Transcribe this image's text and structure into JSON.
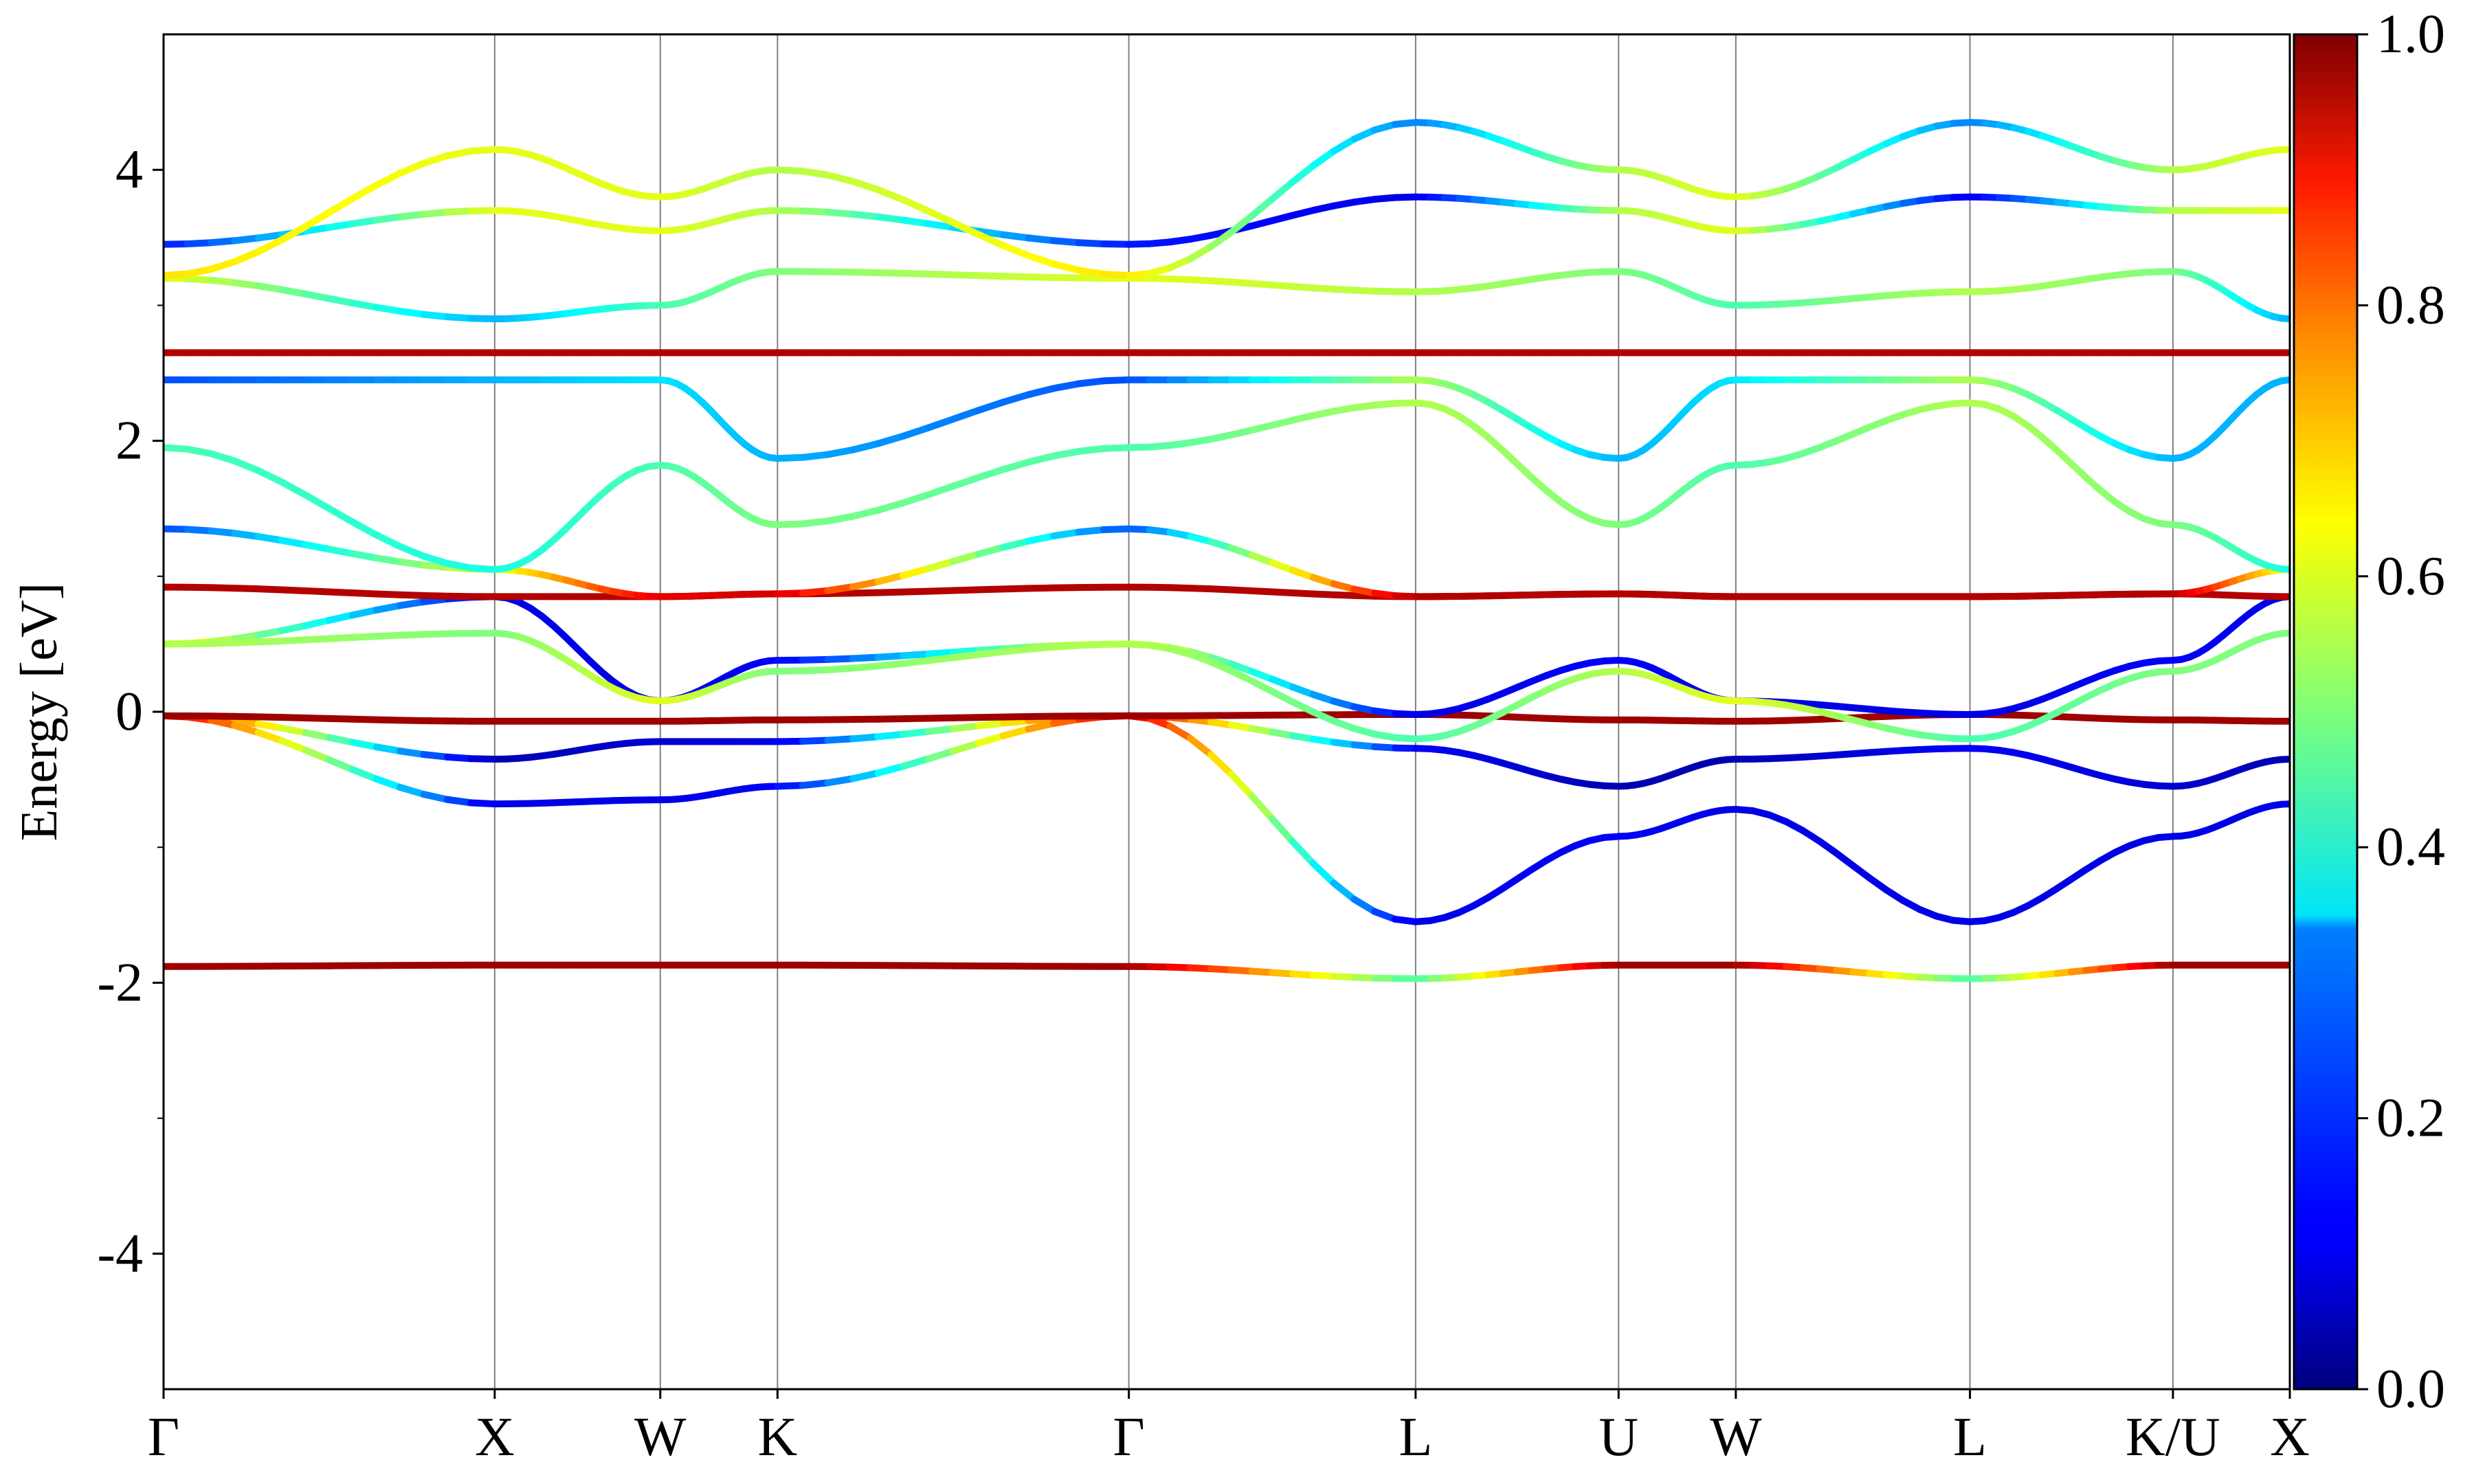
{
  "chart_data": {
    "type": "line",
    "subtype": "band-structure",
    "title": "",
    "xlabel": "",
    "ylabel": "Energy [eV]",
    "ylim": [
      -5,
      5
    ],
    "y_ticks": [
      {
        "value": 4,
        "label": "4"
      },
      {
        "value": 2,
        "label": "2"
      },
      {
        "value": 0,
        "label": "0"
      },
      {
        "value": -2,
        "label": "-2"
      },
      {
        "value": -4,
        "label": "-4"
      }
    ],
    "k_path": [
      {
        "label": "Γ",
        "k": 0.0
      },
      {
        "label": "X",
        "k": 1.0
      },
      {
        "label": "W",
        "k": 1.5
      },
      {
        "label": "K",
        "k": 1.854
      },
      {
        "label": "Γ",
        "k": 2.915
      },
      {
        "label": "L",
        "k": 3.781
      },
      {
        "label": "U",
        "k": 4.394
      },
      {
        "label": "W",
        "k": 4.748
      },
      {
        "label": "L",
        "k": 5.455
      },
      {
        "label": "K/U",
        "k": 6.068
      },
      {
        "label": "X",
        "k": 6.421
      }
    ],
    "colorbar": {
      "range": [
        0.0,
        1.0
      ],
      "ticks": [
        "0.0",
        "0.2",
        "0.4",
        "0.6",
        "0.8",
        "1.0"
      ],
      "colormap": "jet"
    },
    "grid": "vertical lines at high-symmetry points",
    "series": [
      {
        "e": [
          -1.88,
          -1.87,
          -1.87,
          -1.87,
          -1.88,
          -1.97,
          -1.87,
          -1.87,
          -1.97,
          -1.87,
          -1.87
        ],
        "w": [
          0.97,
          0.97,
          0.97,
          0.97,
          0.97,
          0.45,
          0.97,
          0.97,
          0.45,
          0.97,
          0.97
        ]
      },
      {
        "e": [
          -0.03,
          -0.35,
          -0.22,
          -0.22,
          -0.03,
          -0.27,
          -0.55,
          -0.35,
          -0.27,
          -0.55,
          -0.35
        ],
        "w": [
          0.92,
          0.05,
          0.08,
          0.1,
          0.92,
          0.12,
          0.05,
          0.05,
          0.12,
          0.08,
          0.05
        ]
      },
      {
        "e": [
          -0.03,
          -0.68,
          -0.65,
          -0.55,
          -0.03,
          -1.55,
          -0.92,
          -0.72,
          -1.55,
          -0.92,
          -0.68
        ],
        "w": [
          0.92,
          0.1,
          0.1,
          0.12,
          0.92,
          0.1,
          0.12,
          0.1,
          0.1,
          0.1,
          0.1
        ]
      },
      {
        "e": [
          -0.03,
          -0.07,
          -0.07,
          -0.06,
          -0.03,
          -0.02,
          -0.06,
          -0.07,
          -0.02,
          -0.06,
          -0.07
        ],
        "w": [
          0.97,
          0.97,
          0.97,
          0.97,
          0.97,
          0.97,
          0.97,
          0.97,
          0.97,
          0.97,
          0.97
        ]
      },
      {
        "e": [
          0.5,
          0.85,
          0.08,
          0.38,
          0.5,
          -0.02,
          0.38,
          0.08,
          -0.02,
          0.38,
          0.85
        ],
        "w": [
          0.65,
          0.1,
          0.1,
          0.12,
          0.65,
          0.1,
          0.12,
          0.1,
          0.1,
          0.12,
          0.1
        ]
      },
      {
        "e": [
          0.5,
          0.58,
          0.08,
          0.3,
          0.5,
          -0.2,
          0.3,
          0.08,
          -0.2,
          0.3,
          0.58
        ],
        "w": [
          0.55,
          0.5,
          0.6,
          0.5,
          0.55,
          0.45,
          0.55,
          0.6,
          0.45,
          0.5,
          0.5
        ]
      },
      {
        "e": [
          0.92,
          0.85,
          0.85,
          0.87,
          0.92,
          0.85,
          0.87,
          0.85,
          0.85,
          0.87,
          0.85
        ],
        "w": [
          0.95,
          0.95,
          0.95,
          0.95,
          0.95,
          0.95,
          0.95,
          0.95,
          0.95,
          0.95,
          0.95
        ]
      },
      {
        "e": [
          1.35,
          1.05,
          0.85,
          0.87,
          1.35,
          0.85,
          0.87,
          0.85,
          0.85,
          0.87,
          1.05
        ],
        "w": [
          0.2,
          0.6,
          0.9,
          0.92,
          0.2,
          0.95,
          0.95,
          0.95,
          0.95,
          0.95,
          0.6
        ]
      },
      {
        "e": [
          1.95,
          1.05,
          1.82,
          1.38,
          1.95,
          2.28,
          1.38,
          1.82,
          2.28,
          1.38,
          1.05
        ],
        "w": [
          0.45,
          0.4,
          0.45,
          0.5,
          0.45,
          0.55,
          0.5,
          0.45,
          0.55,
          0.5,
          0.4
        ]
      },
      {
        "e": [
          2.45,
          2.45,
          2.45,
          1.87,
          2.45,
          2.45,
          1.87,
          2.45,
          2.45,
          1.87,
          2.45
        ],
        "w": [
          0.2,
          0.3,
          0.35,
          0.3,
          0.2,
          0.55,
          0.3,
          0.35,
          0.55,
          0.3,
          0.3
        ]
      },
      {
        "e": [
          2.65,
          2.65,
          2.65,
          2.65,
          2.65,
          2.65,
          2.65,
          2.65,
          2.65,
          2.65,
          2.65
        ],
        "w": [
          0.95,
          0.95,
          0.95,
          0.95,
          0.95,
          0.95,
          0.95,
          0.95,
          0.95,
          0.95,
          0.95
        ]
      },
      {
        "e": [
          3.2,
          2.9,
          3.0,
          3.25,
          3.2,
          3.1,
          3.25,
          3.0,
          3.1,
          3.25,
          2.9
        ],
        "w": [
          0.6,
          0.3,
          0.45,
          0.5,
          0.6,
          0.55,
          0.5,
          0.45,
          0.55,
          0.5,
          0.3
        ]
      },
      {
        "e": [
          3.45,
          3.7,
          3.55,
          3.7,
          3.45,
          3.8,
          3.7,
          3.55,
          3.8,
          3.7,
          3.7
        ],
        "w": [
          0.15,
          0.6,
          0.6,
          0.55,
          0.15,
          0.1,
          0.55,
          0.6,
          0.1,
          0.55,
          0.6
        ]
      },
      {
        "e": [
          3.22,
          4.15,
          3.8,
          4.0,
          3.22,
          4.35,
          4.0,
          3.8,
          4.35,
          4.0,
          4.15
        ],
        "w": [
          0.65,
          0.6,
          0.6,
          0.55,
          0.65,
          0.25,
          0.55,
          0.6,
          0.25,
          0.55,
          0.6
        ]
      }
    ]
  }
}
